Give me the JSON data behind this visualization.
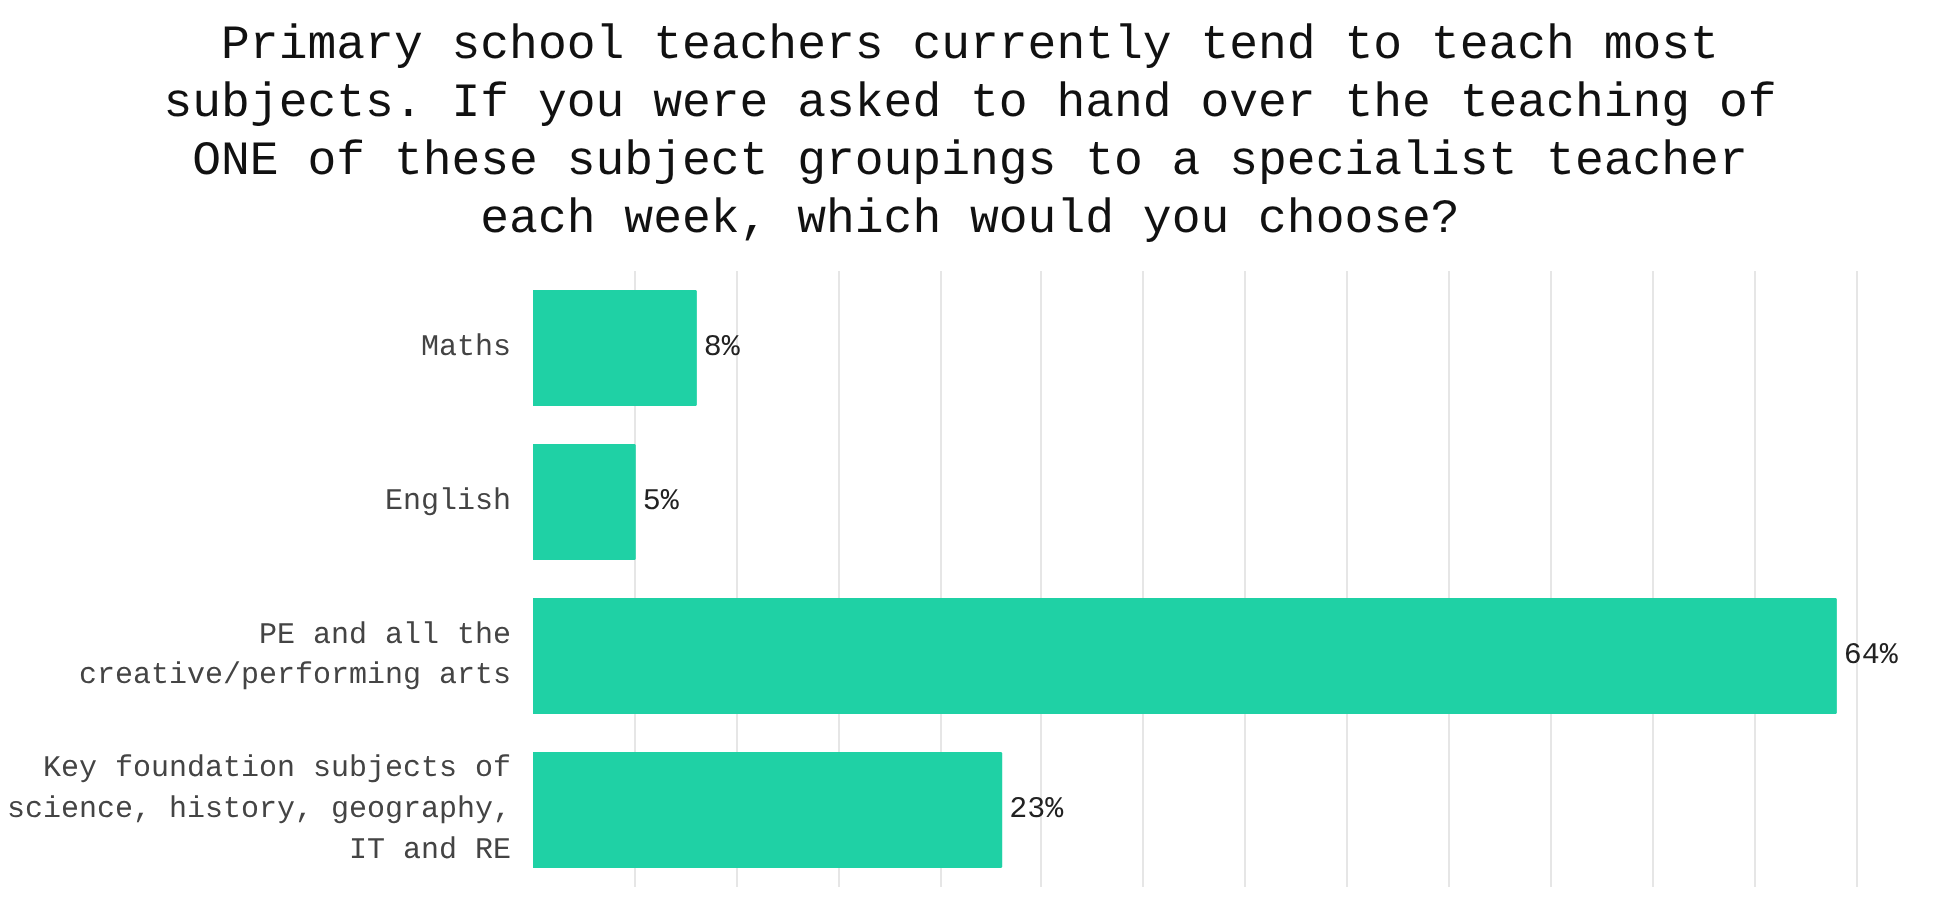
{
  "chart_data": {
    "type": "bar",
    "orientation": "horizontal",
    "title": "Primary school teachers currently tend to teach most subjects. If you were asked to hand over the teaching of ONE of these subject groupings to a specialist teacher each week, which would you choose?",
    "categories": [
      "Maths",
      "English",
      "PE and all the creative/performing arts",
      "Key foundation subjects of science, history, geography, IT and RE"
    ],
    "values": [
      8,
      5,
      64,
      23
    ],
    "value_labels": [
      "8%",
      "5%",
      "64%",
      "23%"
    ],
    "color": "#1fd1a5",
    "xticks": [
      {
        "value": 5,
        "label": null
      },
      {
        "value": 10,
        "label": null
      },
      {
        "value": 15,
        "label": null
      },
      {
        "value": 20,
        "label": null
      },
      {
        "value": 25,
        "label": null
      },
      {
        "value": 30,
        "label": null
      },
      {
        "value": 35,
        "label": null
      },
      {
        "value": 40,
        "label": null
      },
      {
        "value": 45,
        "label": null
      },
      {
        "value": 50,
        "label": null
      },
      {
        "value": 55,
        "label": null
      },
      {
        "value": 60,
        "label": null
      },
      {
        "value": 65,
        "label": null
      }
    ],
    "grid": "x",
    "tick_labels": "y"
  }
}
